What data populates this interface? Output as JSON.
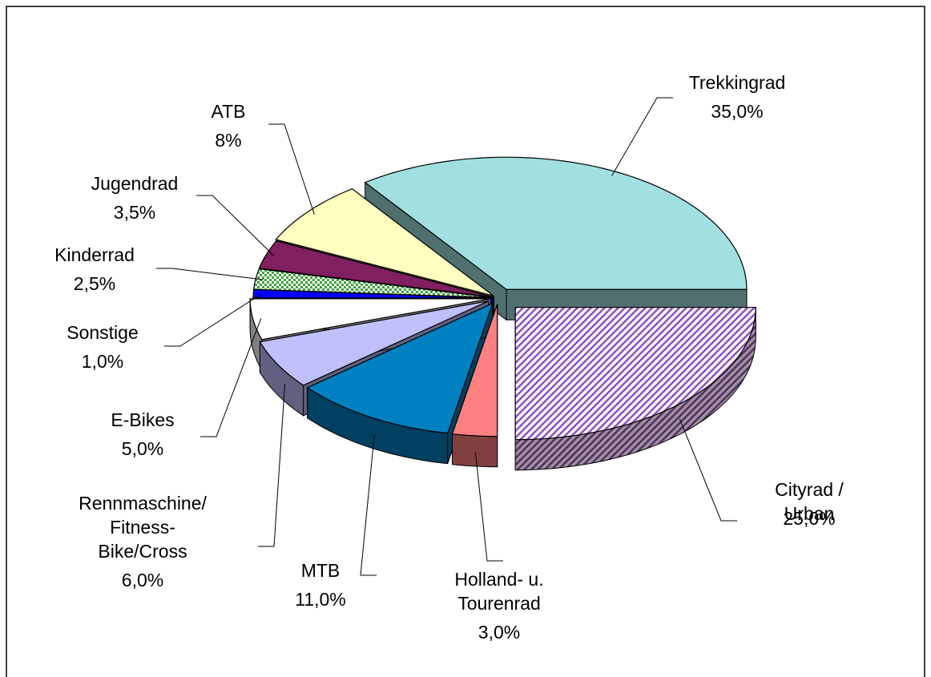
{
  "chart_data": {
    "type": "pie3d",
    "categories": [
      "Trekkingrad",
      "Cityrad / Urban",
      "Holland- u.\nTourenrad",
      "MTB",
      "Rennmaschine/\nFitness-\nBike/Cross",
      "E-Bikes",
      "Sonstige",
      "Kinderrad",
      "Jugendrad",
      "ATB"
    ],
    "values": [
      35,
      25,
      3,
      11,
      6,
      5,
      1,
      2.5,
      3.5,
      8
    ],
    "value_labels": [
      "35,0%",
      "25,0%",
      "3,0%",
      "11,0%",
      "6,0%",
      "5,0%",
      "1,0%",
      "2,5%",
      "3,5%",
      "8%"
    ],
    "colors": [
      "#a0e0e0",
      "#b080d0",
      "#ff8080",
      "#0080c0",
      "#c0c0ff",
      "#ffffff",
      "#0000ff",
      "#60c060",
      "#802060",
      "#ffffc0"
    ]
  }
}
